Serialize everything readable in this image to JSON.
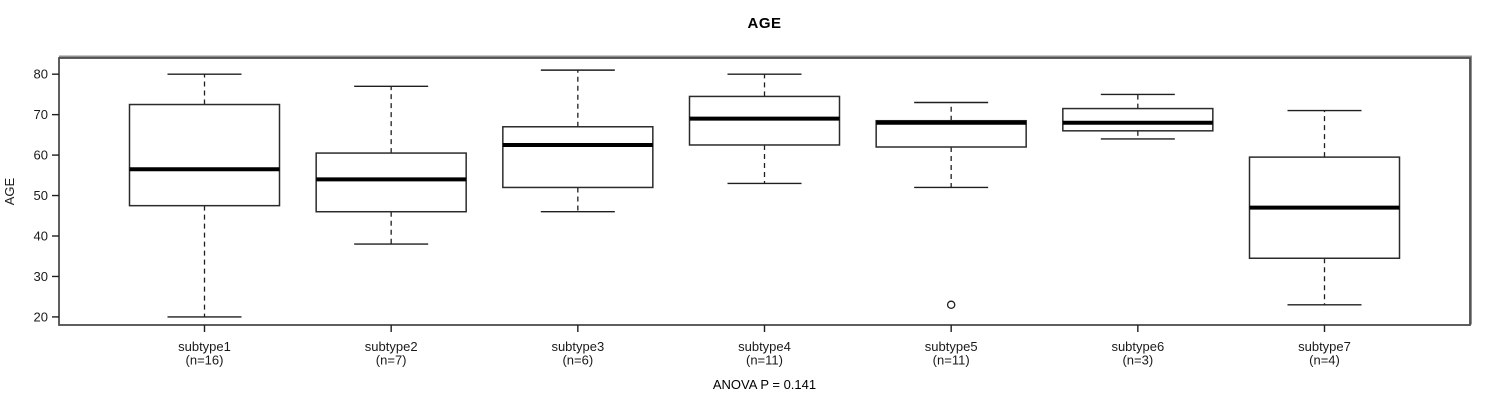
{
  "title": "AGE",
  "footer": "ANOVA P = 0.141",
  "chart_data": {
    "type": "boxplot",
    "title": "AGE",
    "ylabel": "AGE",
    "xlabel": "",
    "ylim": [
      18,
      84
    ],
    "yticks": [
      20,
      30,
      40,
      50,
      60,
      70,
      80
    ],
    "grid": false,
    "annotation": "ANOVA P = 0.141",
    "colors": {
      "background": "#ffffff",
      "box_fill": "#ffffff",
      "box_stroke": "#2b2b2b",
      "median": "#000000",
      "whisker": "#1f1f1f",
      "border": "#4d4d4d",
      "text": "#1a1a1a"
    },
    "groups": [
      {
        "label": "subtype1",
        "sublabel": "(n=16)",
        "n": 16,
        "whisker_low": 20,
        "q1": 47.5,
        "median": 56.5,
        "q3": 72.5,
        "whisker_high": 80,
        "outliers": []
      },
      {
        "label": "subtype2",
        "sublabel": "(n=7)",
        "n": 7,
        "whisker_low": 38,
        "q1": 46,
        "median": 54,
        "q3": 60.5,
        "whisker_high": 77,
        "outliers": []
      },
      {
        "label": "subtype3",
        "sublabel": "(n=6)",
        "n": 6,
        "whisker_low": 46,
        "q1": 52,
        "median": 62.5,
        "q3": 67,
        "whisker_high": 81,
        "outliers": []
      },
      {
        "label": "subtype4",
        "sublabel": "(n=11)",
        "n": 11,
        "whisker_low": 53,
        "q1": 62.5,
        "median": 69,
        "q3": 74.5,
        "whisker_high": 80,
        "outliers": []
      },
      {
        "label": "subtype5",
        "sublabel": "(n=11)",
        "n": 11,
        "whisker_low": 52,
        "q1": 62,
        "median": 68,
        "q3": 68.5,
        "whisker_high": 73,
        "outliers": [
          23
        ]
      },
      {
        "label": "subtype6",
        "sublabel": "(n=3)",
        "n": 3,
        "whisker_low": 64,
        "q1": 66,
        "median": 68,
        "q3": 71.5,
        "whisker_high": 75,
        "outliers": []
      },
      {
        "label": "subtype7",
        "sublabel": "(n=4)",
        "n": 4,
        "whisker_low": 23,
        "q1": 34.5,
        "median": 47,
        "q3": 59.5,
        "whisker_high": 71,
        "outliers": []
      }
    ]
  }
}
